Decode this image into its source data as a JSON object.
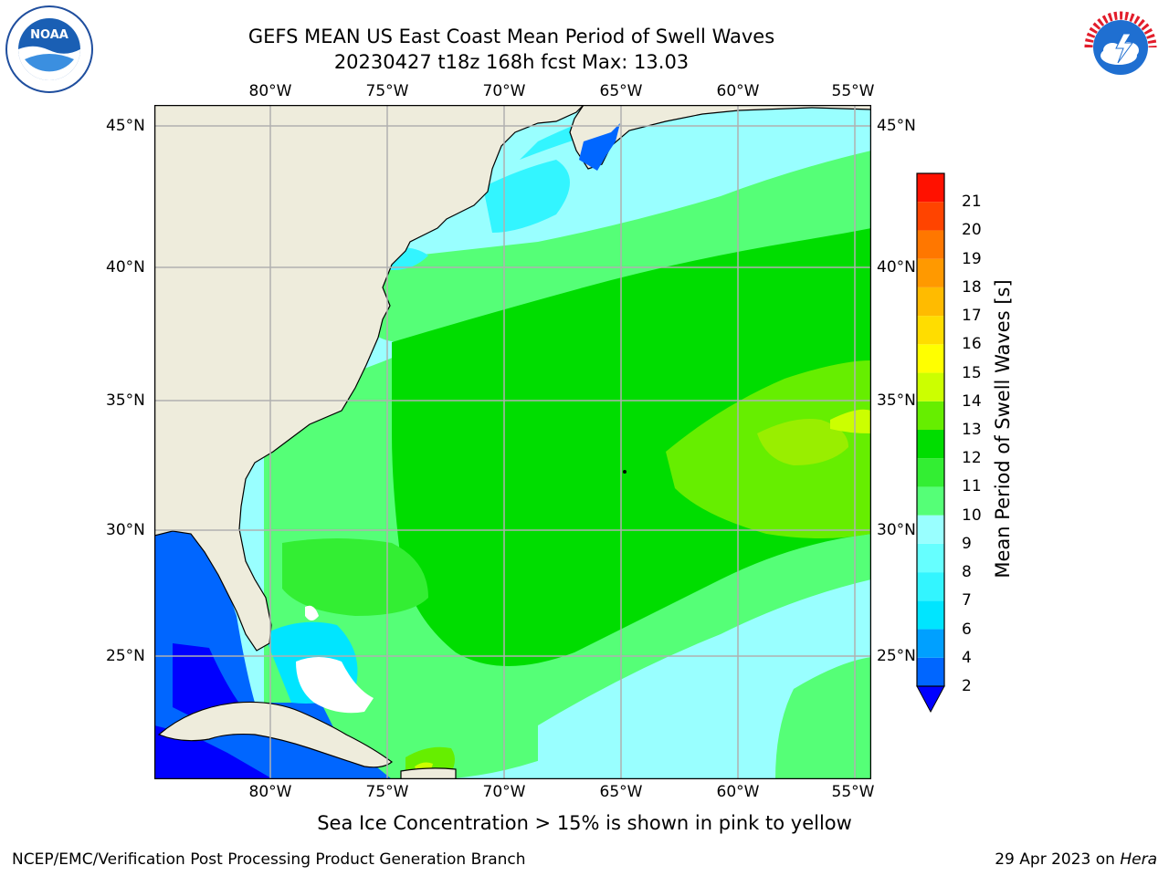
{
  "title": {
    "line1": "GEFS MEAN US East Coast Mean Period of Swell Waves",
    "line2": "20230427 t18z 168h fcst   Max: 13.03"
  },
  "map": {
    "lon_labels": [
      "80°W",
      "75°W",
      "70°W",
      "65°W",
      "60°W",
      "55°W"
    ],
    "lat_labels": [
      "45°N",
      "40°N",
      "35°N",
      "30°N",
      "25°N"
    ],
    "land_color": "#eeecdc",
    "grid_color": "#b0b0b0"
  },
  "colorbar": {
    "label": "Mean Period of Swell Waves [s]",
    "ticks": [
      "2",
      "4",
      "6",
      "7",
      "8",
      "9",
      "10",
      "11",
      "12",
      "13",
      "14",
      "15",
      "16",
      "17",
      "18",
      "19",
      "20",
      "21"
    ],
    "colors": [
      "#0066ff",
      "#00a0ff",
      "#00e5ff",
      "#33f5ff",
      "#66ffff",
      "#99ffff",
      "#55ff77",
      "#33ee33",
      "#00dd00",
      "#66ee00",
      "#ccff00",
      "#ffff00",
      "#ffdd00",
      "#ffbb00",
      "#ff9900",
      "#ff7700",
      "#ff4400",
      "#ff1100"
    ],
    "under_color": "#0000ff"
  },
  "footer": {
    "note": "Sea Ice Concentration > 15% is shown in pink to yellow",
    "credit": "NCEP/EMC/Verification Post Processing Product Generation Branch",
    "date": "29 Apr 2023 on",
    "machine": "Hera"
  },
  "logos": {
    "left": "NOAA",
    "right": "NATIONAL WEATHER SERVICE"
  }
}
